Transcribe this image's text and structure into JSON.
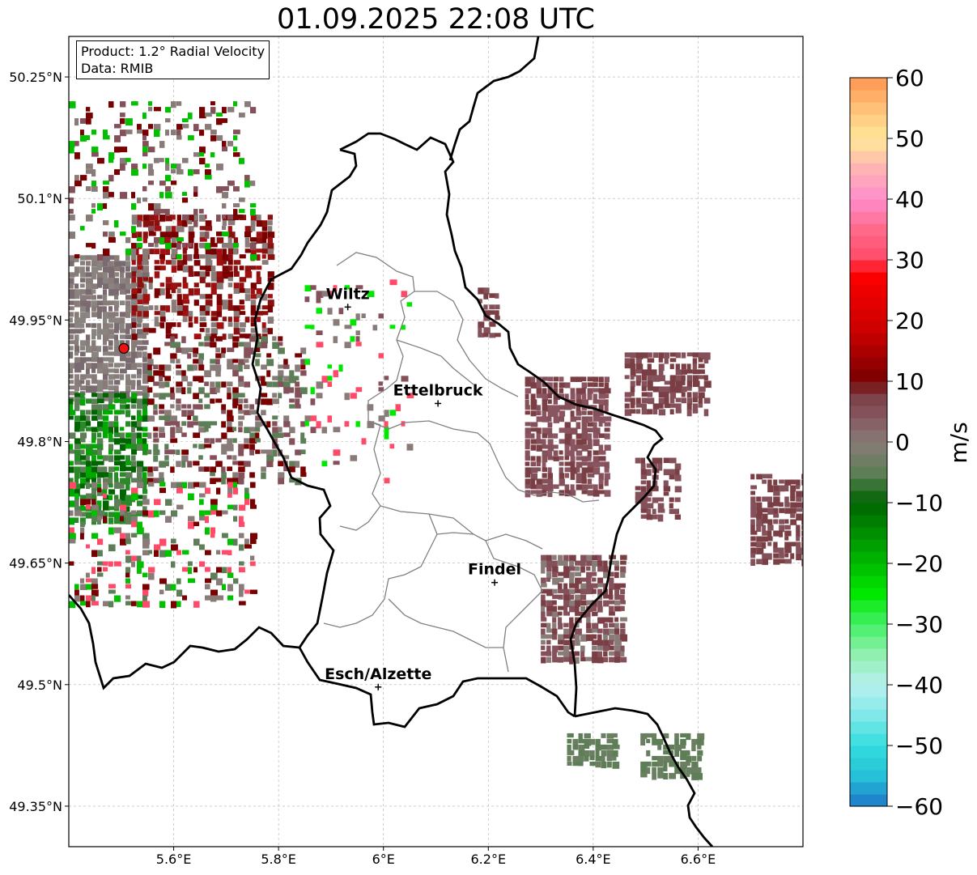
{
  "title": "01.09.2025 22:08 UTC",
  "info": {
    "product": "Product: 1.2° Radial Velocity",
    "source": "Data: RMIB"
  },
  "axes": {
    "x_ticks": [
      {
        "value": 5.6,
        "label": "5.6°E"
      },
      {
        "value": 5.8,
        "label": "5.8°E"
      },
      {
        "value": 6.0,
        "label": "6°E"
      },
      {
        "value": 6.2,
        "label": "6.2°E"
      },
      {
        "value": 6.4,
        "label": "6.4°E"
      },
      {
        "value": 6.6,
        "label": "6.6°E"
      }
    ],
    "y_ticks": [
      {
        "value": 50.25,
        "label": "50.25°N"
      },
      {
        "value": 50.1,
        "label": "50.1°N"
      },
      {
        "value": 49.95,
        "label": "49.95°N"
      },
      {
        "value": 49.8,
        "label": "49.8°N"
      },
      {
        "value": 49.65,
        "label": "49.65°N"
      },
      {
        "value": 49.5,
        "label": "49.5°N"
      },
      {
        "value": 49.35,
        "label": "49.35°N"
      }
    ],
    "lon_range": [
      5.4,
      6.8
    ],
    "lat_range": [
      49.3,
      50.3
    ]
  },
  "radar": {
    "lon": 5.505,
    "lat": 49.915,
    "color": "#ee1111"
  },
  "cities": [
    {
      "name": "Wiltz",
      "lon": 5.932,
      "lat": 49.966
    },
    {
      "name": "Ettelbruck",
      "lon": 6.104,
      "lat": 49.847
    },
    {
      "name": "Findel",
      "lon": 6.212,
      "lat": 49.626
    },
    {
      "name": "Esch/Alzette",
      "lon": 5.99,
      "lat": 49.497
    }
  ],
  "colorbar": {
    "unit": "m/s",
    "range": [
      -60,
      60
    ],
    "ticks": [
      {
        "value": 60,
        "label": "60"
      },
      {
        "value": 50,
        "label": "50"
      },
      {
        "value": 40,
        "label": "40"
      },
      {
        "value": 30,
        "label": "30"
      },
      {
        "value": 20,
        "label": "20"
      },
      {
        "value": 10,
        "label": "10"
      },
      {
        "value": 0,
        "label": "0"
      },
      {
        "value": -10,
        "label": "−10"
      },
      {
        "value": -20,
        "label": "−20"
      },
      {
        "value": -30,
        "label": "−30"
      },
      {
        "value": -40,
        "label": "−40"
      },
      {
        "value": -50,
        "label": "−50"
      },
      {
        "value": -60,
        "label": "−60"
      }
    ],
    "stops": [
      {
        "v": -60,
        "c": "#1f78c8"
      },
      {
        "v": -55,
        "c": "#26c0d8"
      },
      {
        "v": -50,
        "c": "#33dede"
      },
      {
        "v": -45,
        "c": "#80e8e8"
      },
      {
        "v": -40,
        "c": "#b8f0f0"
      },
      {
        "v": -35,
        "c": "#90f0b0"
      },
      {
        "v": -30,
        "c": "#44f066"
      },
      {
        "v": -25,
        "c": "#00e800"
      },
      {
        "v": -18,
        "c": "#00a800"
      },
      {
        "v": -10,
        "c": "#006400"
      },
      {
        "v": -5,
        "c": "#5e7e58"
      },
      {
        "v": 0,
        "c": "#887b78"
      },
      {
        "v": 5,
        "c": "#84505a"
      },
      {
        "v": 8,
        "c": "#7a3f44"
      },
      {
        "v": 10,
        "c": "#780000"
      },
      {
        "v": 18,
        "c": "#c80000"
      },
      {
        "v": 28,
        "c": "#ff0000"
      },
      {
        "v": 30,
        "c": "#ff4a6a"
      },
      {
        "v": 35,
        "c": "#ff6a8a"
      },
      {
        "v": 40,
        "c": "#ff8ccc"
      },
      {
        "v": 45,
        "c": "#ffb4b4"
      },
      {
        "v": 50,
        "c": "#ffe898"
      },
      {
        "v": 55,
        "c": "#ffc078"
      },
      {
        "v": 60,
        "c": "#ff9650"
      }
    ]
  },
  "echo_regions": [
    {
      "lon": [
        5.4,
        5.55
      ],
      "lat": [
        49.85,
        50.03
      ],
      "colors": [
        "#887b78",
        "#7a6b70",
        "#8a8480"
      ],
      "density": 0.9
    },
    {
      "lon": [
        5.4,
        5.55
      ],
      "lat": [
        49.7,
        49.86
      ],
      "colors": [
        "#006400",
        "#00a800",
        "#5e7e58",
        "#2a8a2a"
      ],
      "density": 0.85
    },
    {
      "lon": [
        5.52,
        5.78
      ],
      "lat": [
        49.93,
        50.08
      ],
      "colors": [
        "#780000",
        "#8a1010",
        "#887b78",
        "#a01010"
      ],
      "density": 0.65
    },
    {
      "lon": [
        5.4,
        5.75
      ],
      "lat": [
        50.03,
        50.22
      ],
      "colors": [
        "#780000",
        "#887b78",
        "#84505a",
        "#00c000"
      ],
      "density": 0.25
    },
    {
      "lon": [
        5.55,
        5.85
      ],
      "lat": [
        49.75,
        49.93
      ],
      "colors": [
        "#887b78",
        "#84505a",
        "#5e7e58",
        "#780000"
      ],
      "density": 0.45
    },
    {
      "lon": [
        5.4,
        5.75
      ],
      "lat": [
        49.6,
        49.75
      ],
      "colors": [
        "#5e7e58",
        "#00c000",
        "#887b78",
        "#780000",
        "#ff4a6a"
      ],
      "density": 0.3
    },
    {
      "lon": [
        5.85,
        6.05
      ],
      "lat": [
        49.75,
        50.0
      ],
      "colors": [
        "#887b78",
        "#84505a",
        "#00e800",
        "#ff4a6a"
      ],
      "density": 0.12
    },
    {
      "lon": [
        6.27,
        6.43
      ],
      "lat": [
        49.74,
        49.88
      ],
      "colors": [
        "#7a3f44",
        "#84505a",
        "#8a5560"
      ],
      "density": 0.85
    },
    {
      "lon": [
        6.3,
        6.46
      ],
      "lat": [
        49.53,
        49.66
      ],
      "colors": [
        "#84505a",
        "#887b78",
        "#7a3f44"
      ],
      "density": 0.8
    },
    {
      "lon": [
        6.46,
        6.62
      ],
      "lat": [
        49.84,
        49.91
      ],
      "colors": [
        "#7a3f44",
        "#84505a"
      ],
      "density": 0.8
    },
    {
      "lon": [
        6.7,
        6.8
      ],
      "lat": [
        49.65,
        49.76
      ],
      "colors": [
        "#84505a",
        "#7a3f44"
      ],
      "density": 0.8
    },
    {
      "lon": [
        6.35,
        6.44
      ],
      "lat": [
        49.4,
        49.44
      ],
      "colors": [
        "#5e7e58",
        "#6a7e60"
      ],
      "density": 0.85
    },
    {
      "lon": [
        6.49,
        6.6
      ],
      "lat": [
        49.39,
        49.44
      ],
      "colors": [
        "#5e7e58",
        "#6a7e60"
      ],
      "density": 0.8
    },
    {
      "lon": [
        6.48,
        6.56
      ],
      "lat": [
        49.71,
        49.78
      ],
      "colors": [
        "#84505a",
        "#7a3f44"
      ],
      "density": 0.6
    },
    {
      "lon": [
        6.18,
        6.22
      ],
      "lat": [
        49.93,
        49.99
      ],
      "colors": [
        "#7a3f44",
        "#84505a"
      ],
      "density": 0.8
    }
  ]
}
